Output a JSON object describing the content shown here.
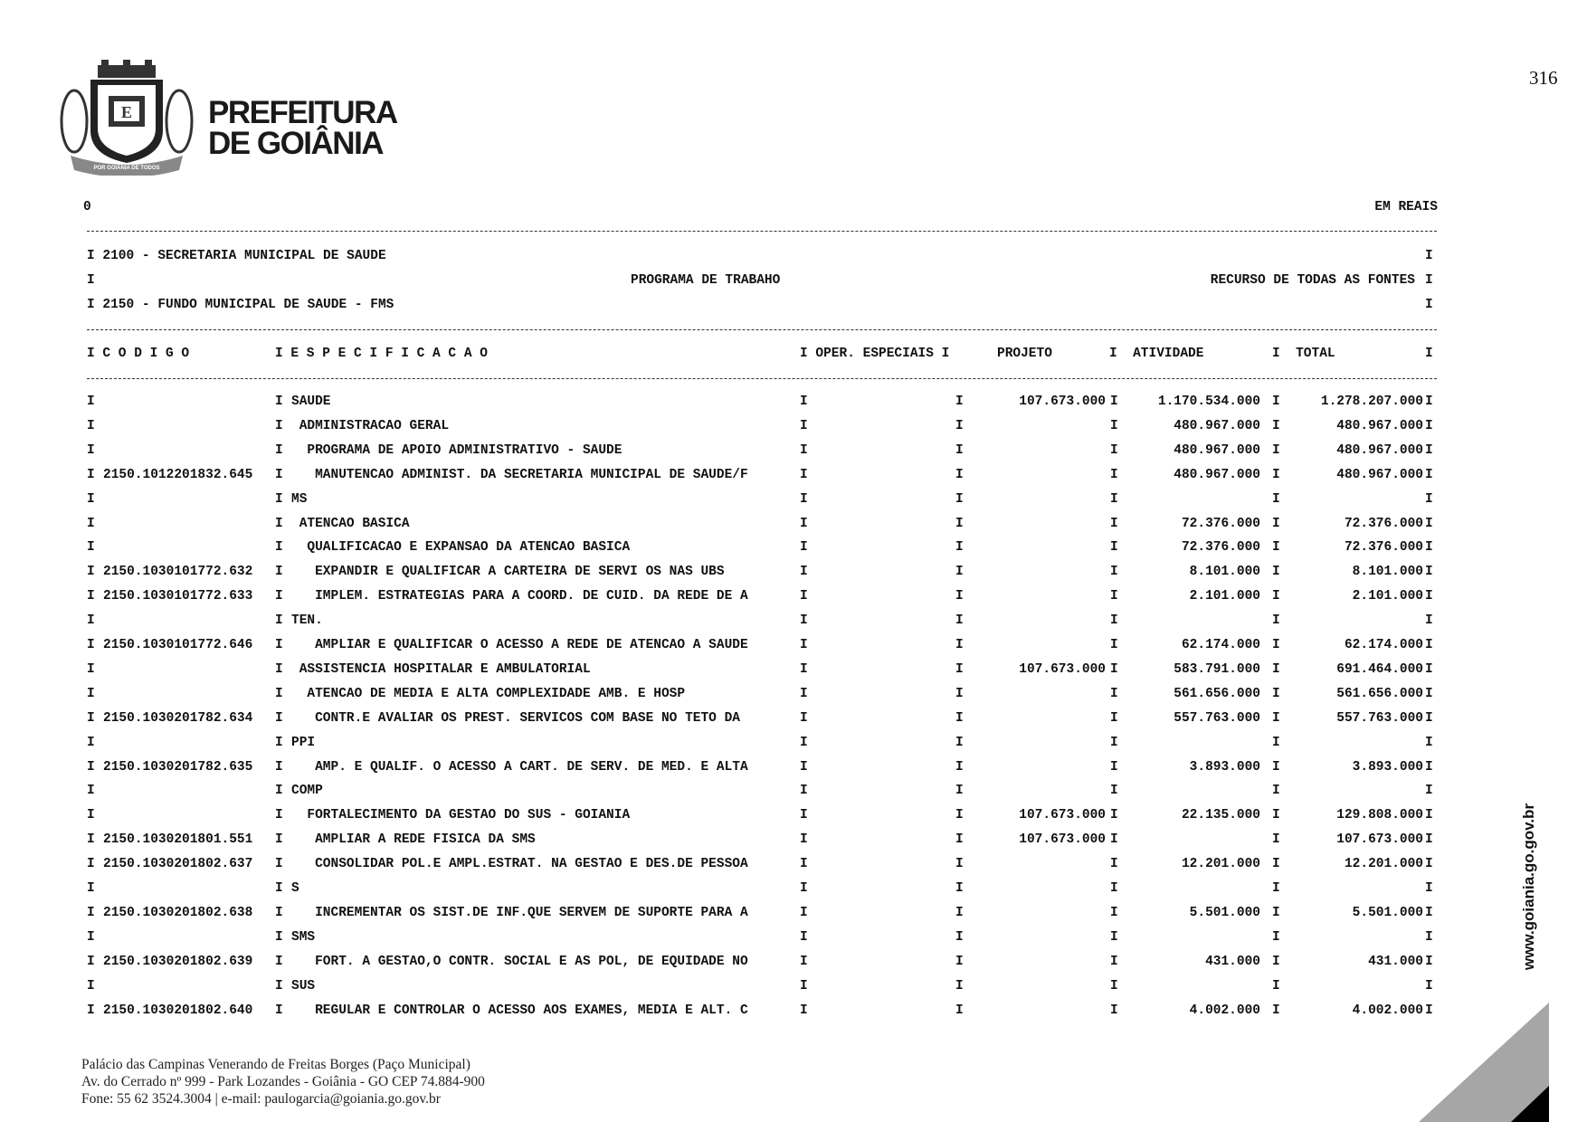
{
  "header": {
    "brand_line1": "PREFEITURA",
    "brand_line2": "DE GOIÂNIA",
    "crest_motto": "POR GOIÂNIA DE TODOS",
    "page_number": "316",
    "left_marker": "0",
    "units": "EM REAIS",
    "org_line": "I 2100 - SECRETARIA MUNICIPAL DE SAUDE",
    "program_title": "PROGRAMA DE TRABAHO",
    "sources": "RECURSO DE TODAS AS FONTES",
    "fund_line": "I 2150 - FUNDO MUNICIPAL DE SAUDE - FMS",
    "edge_char": "I"
  },
  "columns": {
    "codigo": "I C O D I G O",
    "especificacao": "I E S P E C I F I C A C A O",
    "oper": "I OPER. ESPECIAIS I",
    "projeto": "PROJETO",
    "atividade": "I  ATIVIDADE",
    "total": "I  TOTAL",
    "end": "I"
  },
  "rows": [
    {
      "code": "",
      "spec": "SAUDE",
      "oper": "",
      "projeto": "107.673.000",
      "atividade": "1.170.534.000",
      "total": "1.278.207.000"
    },
    {
      "code": "",
      "spec": " ADMINISTRACAO GERAL",
      "oper": "",
      "projeto": "",
      "atividade": "480.967.000",
      "total": "480.967.000"
    },
    {
      "code": "",
      "spec": "  PROGRAMA DE APOIO ADMINISTRATIVO - SAUDE",
      "oper": "",
      "projeto": "",
      "atividade": "480.967.000",
      "total": "480.967.000"
    },
    {
      "code": "2150.1012201832.645",
      "spec": "   MANUTENCAO ADMINIST. DA SECRETARIA MUNICIPAL DE SAUDE/F",
      "oper": "",
      "projeto": "",
      "atividade": "480.967.000",
      "total": "480.967.000"
    },
    {
      "code": "",
      "spec": "MS",
      "oper": "",
      "projeto": "",
      "atividade": "",
      "total": ""
    },
    {
      "code": "",
      "spec": " ATENCAO BASICA",
      "oper": "",
      "projeto": "",
      "atividade": "72.376.000",
      "total": "72.376.000"
    },
    {
      "code": "",
      "spec": "  QUALIFICACAO E EXPANSAO DA ATENCAO BASICA",
      "oper": "",
      "projeto": "",
      "atividade": "72.376.000",
      "total": "72.376.000"
    },
    {
      "code": "2150.1030101772.632",
      "spec": "   EXPANDIR E QUALIFICAR A CARTEIRA DE SERVI OS NAS UBS",
      "oper": "",
      "projeto": "",
      "atividade": "8.101.000",
      "total": "8.101.000"
    },
    {
      "code": "2150.1030101772.633",
      "spec": "   IMPLEM. ESTRATEGIAS PARA A COORD. DE CUID. DA REDE DE A",
      "oper": "",
      "projeto": "",
      "atividade": "2.101.000",
      "total": "2.101.000"
    },
    {
      "code": "",
      "spec": "TEN.",
      "oper": "",
      "projeto": "",
      "atividade": "",
      "total": ""
    },
    {
      "code": "2150.1030101772.646",
      "spec": "   AMPLIAR E QUALIFICAR O ACESSO A REDE DE ATENCAO A SAUDE",
      "oper": "",
      "projeto": "",
      "atividade": "62.174.000",
      "total": "62.174.000"
    },
    {
      "code": "",
      "spec": " ASSISTENCIA HOSPITALAR E AMBULATORIAL",
      "oper": "",
      "projeto": "107.673.000",
      "atividade": "583.791.000",
      "total": "691.464.000"
    },
    {
      "code": "",
      "spec": "  ATENCAO DE MEDIA E ALTA COMPLEXIDADE AMB. E HOSP",
      "oper": "",
      "projeto": "",
      "atividade": "561.656.000",
      "total": "561.656.000"
    },
    {
      "code": "2150.1030201782.634",
      "spec": "   CONTR.E AVALIAR OS PREST. SERVICOS COM BASE NO TETO DA",
      "oper": "",
      "projeto": "",
      "atividade": "557.763.000",
      "total": "557.763.000"
    },
    {
      "code": "",
      "spec": "PPI",
      "oper": "",
      "projeto": "",
      "atividade": "",
      "total": ""
    },
    {
      "code": "2150.1030201782.635",
      "spec": "   AMP. E QUALIF. O ACESSO A CART. DE SERV. DE MED. E ALTA",
      "oper": "",
      "projeto": "",
      "atividade": "3.893.000",
      "total": "3.893.000"
    },
    {
      "code": "",
      "spec": "COMP",
      "oper": "",
      "projeto": "",
      "atividade": "",
      "total": ""
    },
    {
      "code": "",
      "spec": "  FORTALECIMENTO DA GESTAO DO SUS - GOIANIA",
      "oper": "",
      "projeto": "107.673.000",
      "atividade": "22.135.000",
      "total": "129.808.000"
    },
    {
      "code": "2150.1030201801.551",
      "spec": "   AMPLIAR A REDE FISICA DA SMS",
      "oper": "",
      "projeto": "107.673.000",
      "atividade": "",
      "total": "107.673.000"
    },
    {
      "code": "2150.1030201802.637",
      "spec": "   CONSOLIDAR POL.E AMPL.ESTRAT. NA GESTAO E DES.DE PESSOA",
      "oper": "",
      "projeto": "",
      "atividade": "12.201.000",
      "total": "12.201.000"
    },
    {
      "code": "",
      "spec": "S",
      "oper": "",
      "projeto": "",
      "atividade": "",
      "total": ""
    },
    {
      "code": "2150.1030201802.638",
      "spec": "   INCREMENTAR OS SIST.DE INF.QUE SERVEM DE SUPORTE PARA A",
      "oper": "",
      "projeto": "",
      "atividade": "5.501.000",
      "total": "5.501.000"
    },
    {
      "code": "",
      "spec": "SMS",
      "oper": "",
      "projeto": "",
      "atividade": "",
      "total": ""
    },
    {
      "code": "2150.1030201802.639",
      "spec": "   FORT. A GESTAO,O CONTR. SOCIAL E AS POL, DE EQUIDADE NO",
      "oper": "",
      "projeto": "",
      "atividade": "431.000",
      "total": "431.000"
    },
    {
      "code": "",
      "spec": "SUS",
      "oper": "",
      "projeto": "",
      "atividade": "",
      "total": ""
    },
    {
      "code": "2150.1030201802.640",
      "spec": "   REGULAR E CONTROLAR O ACESSO AOS EXAMES, MEDIA E ALT. C",
      "oper": "",
      "projeto": "",
      "atividade": "4.002.000",
      "total": "4.002.000"
    }
  ],
  "footer": {
    "line1": "Palácio das Campinas Venerando de Freitas Borges (Paço Municipal)",
    "line2": "Av. do Cerrado nº 999 - Park Lozandes - Goiânia - GO CEP 74.884-900",
    "line3": "Fone: 55 62 3524.3004 | e-mail: paulogarcia@goiania.go.gov.br",
    "website": "www.goiania.go.gov.br"
  },
  "colors": {
    "text": "#111111",
    "corner_gray": "#a6a6a6",
    "corner_black": "#000000"
  }
}
